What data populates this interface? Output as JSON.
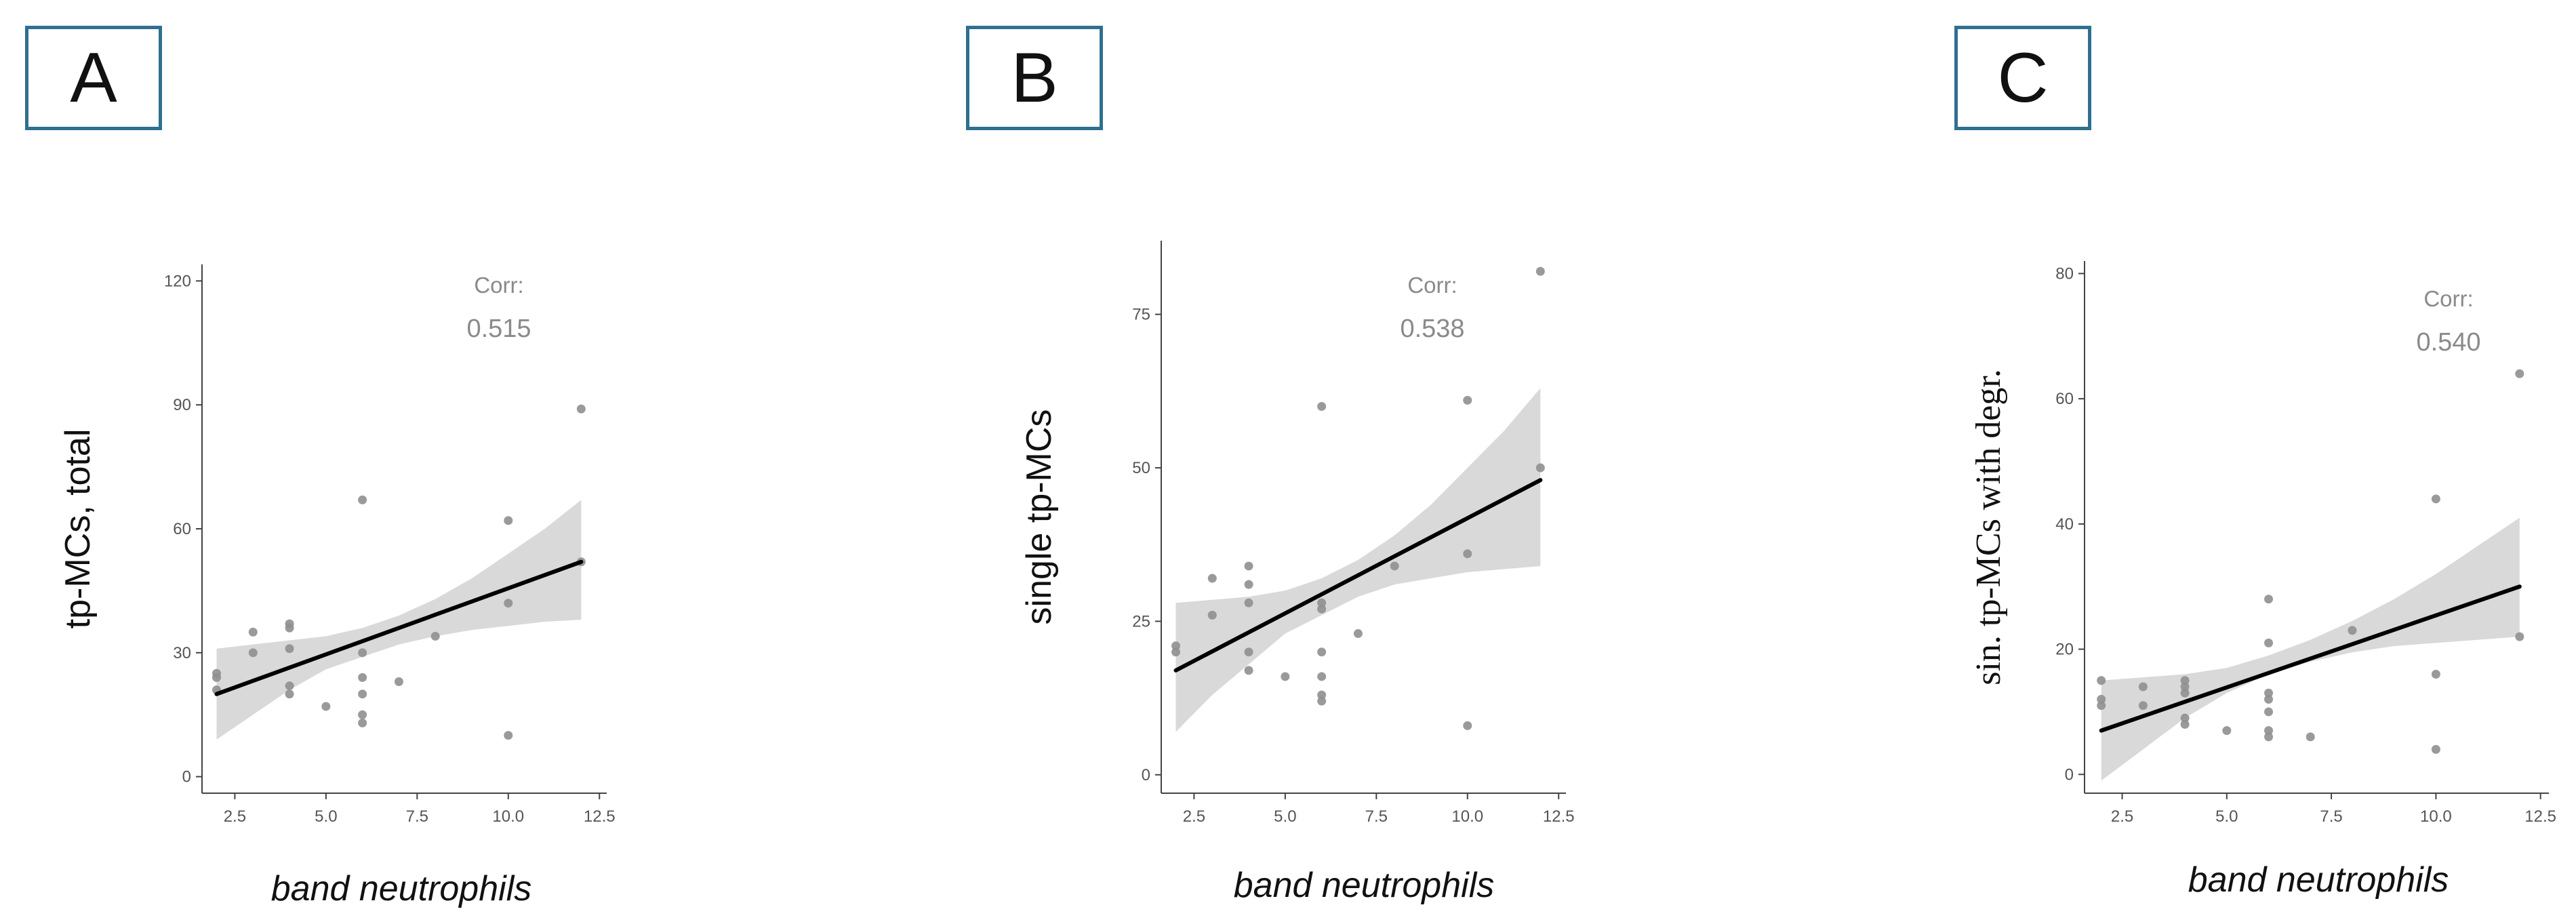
{
  "chart_data": [
    {
      "panel": "A",
      "type": "scatter",
      "ylabel": "tp-MCs, total",
      "xlabel": "band neutrophils",
      "xlim": [
        1.6,
        12.7
      ],
      "ylim": [
        -4,
        124
      ],
      "xticks": [
        2.5,
        5.0,
        7.5,
        10.0,
        12.5
      ],
      "yticks": [
        0,
        30,
        60,
        90,
        120
      ],
      "corr_label": "Corr:",
      "corr_value": "0.515",
      "points": [
        {
          "x": 2,
          "y": 24
        },
        {
          "x": 2,
          "y": 25
        },
        {
          "x": 2,
          "y": 21
        },
        {
          "x": 3,
          "y": 35
        },
        {
          "x": 3,
          "y": 30
        },
        {
          "x": 4,
          "y": 37
        },
        {
          "x": 4,
          "y": 36
        },
        {
          "x": 4,
          "y": 31
        },
        {
          "x": 4,
          "y": 22
        },
        {
          "x": 4,
          "y": 20
        },
        {
          "x": 5,
          "y": 17
        },
        {
          "x": 6,
          "y": 67
        },
        {
          "x": 6,
          "y": 30
        },
        {
          "x": 6,
          "y": 24
        },
        {
          "x": 6,
          "y": 20
        },
        {
          "x": 6,
          "y": 15
        },
        {
          "x": 6,
          "y": 13
        },
        {
          "x": 7,
          "y": 23
        },
        {
          "x": 8,
          "y": 34
        },
        {
          "x": 10,
          "y": 62
        },
        {
          "x": 10,
          "y": 42
        },
        {
          "x": 10,
          "y": 10
        },
        {
          "x": 12,
          "y": 89
        },
        {
          "x": 12,
          "y": 52
        }
      ],
      "fit": {
        "x": [
          2,
          12
        ],
        "y": [
          20,
          52
        ]
      },
      "band": {
        "x": [
          2,
          3,
          4,
          5,
          6,
          7,
          8,
          9,
          10,
          11,
          12
        ],
        "lo": [
          9,
          15,
          21,
          26,
          29,
          32,
          34,
          35.5,
          36.5,
          37.5,
          38
        ],
        "hi": [
          31,
          32,
          33,
          34,
          36,
          39,
          43,
          48,
          54,
          60,
          67
        ]
      },
      "colors": {
        "point": "#8f8f8f",
        "band": "#d9d9d9",
        "line": "#000000"
      }
    },
    {
      "panel": "B",
      "type": "scatter",
      "ylabel": "single tp-MCs",
      "xlabel": "band neutrophils",
      "xlim": [
        1.6,
        12.7
      ],
      "ylim": [
        -3,
        87
      ],
      "xticks": [
        2.5,
        5.0,
        7.5,
        10.0,
        12.5
      ],
      "yticks": [
        0,
        25,
        50,
        75
      ],
      "corr_label": "Corr:",
      "corr_value": "0.538",
      "points": [
        {
          "x": 2,
          "y": 21
        },
        {
          "x": 2,
          "y": 20
        },
        {
          "x": 3,
          "y": 32
        },
        {
          "x": 3,
          "y": 26
        },
        {
          "x": 4,
          "y": 34
        },
        {
          "x": 4,
          "y": 31
        },
        {
          "x": 4,
          "y": 28
        },
        {
          "x": 4,
          "y": 20
        },
        {
          "x": 4,
          "y": 17
        },
        {
          "x": 5,
          "y": 16
        },
        {
          "x": 6,
          "y": 60
        },
        {
          "x": 6,
          "y": 28
        },
        {
          "x": 6,
          "y": 27
        },
        {
          "x": 6,
          "y": 20
        },
        {
          "x": 6,
          "y": 16
        },
        {
          "x": 6,
          "y": 13
        },
        {
          "x": 6,
          "y": 12
        },
        {
          "x": 7,
          "y": 23
        },
        {
          "x": 8,
          "y": 34
        },
        {
          "x": 10,
          "y": 61
        },
        {
          "x": 10,
          "y": 36
        },
        {
          "x": 10,
          "y": 8
        },
        {
          "x": 12,
          "y": 82
        },
        {
          "x": 12,
          "y": 50
        }
      ],
      "fit": {
        "x": [
          2,
          12
        ],
        "y": [
          17,
          48
        ]
      },
      "band": {
        "x": [
          2,
          3,
          4,
          5,
          6,
          7,
          8,
          9,
          10,
          11,
          12
        ],
        "lo": [
          7,
          13,
          18,
          23,
          26,
          29,
          31,
          32,
          33,
          33.5,
          34
        ],
        "hi": [
          28,
          28.5,
          29,
          30,
          32,
          35,
          39,
          44,
          50,
          56,
          63
        ]
      },
      "colors": {
        "point": "#8f8f8f",
        "band": "#d9d9d9",
        "line": "#000000"
      }
    },
    {
      "panel": "C",
      "type": "scatter",
      "ylabel": "sin. tp-MCs with degr.",
      "xlabel": "band neutrophils",
      "xlim": [
        1.6,
        12.7
      ],
      "ylim": [
        -3,
        82
      ],
      "xticks": [
        2.5,
        5.0,
        7.5,
        10.0,
        12.5
      ],
      "yticks": [
        0,
        20,
        40,
        60,
        80
      ],
      "corr_label": "Corr:",
      "corr_value": "0.540",
      "points": [
        {
          "x": 2,
          "y": 15
        },
        {
          "x": 2,
          "y": 12
        },
        {
          "x": 2,
          "y": 11
        },
        {
          "x": 3,
          "y": 14
        },
        {
          "x": 3,
          "y": 11
        },
        {
          "x": 4,
          "y": 15
        },
        {
          "x": 4,
          "y": 14
        },
        {
          "x": 4,
          "y": 13
        },
        {
          "x": 4,
          "y": 9
        },
        {
          "x": 4,
          "y": 8
        },
        {
          "x": 5,
          "y": 7
        },
        {
          "x": 6,
          "y": 28
        },
        {
          "x": 6,
          "y": 21
        },
        {
          "x": 6,
          "y": 13
        },
        {
          "x": 6,
          "y": 12
        },
        {
          "x": 6,
          "y": 10
        },
        {
          "x": 6,
          "y": 7
        },
        {
          "x": 6,
          "y": 6
        },
        {
          "x": 7,
          "y": 6
        },
        {
          "x": 8,
          "y": 23
        },
        {
          "x": 10,
          "y": 44
        },
        {
          "x": 10,
          "y": 16
        },
        {
          "x": 10,
          "y": 4
        },
        {
          "x": 12,
          "y": 64
        },
        {
          "x": 12,
          "y": 22
        }
      ],
      "fit": {
        "x": [
          2,
          12
        ],
        "y": [
          7,
          30
        ]
      },
      "band": {
        "x": [
          2,
          3,
          4,
          5,
          6,
          7,
          8,
          9,
          10,
          11,
          12
        ],
        "lo": [
          -1,
          4,
          9,
          13,
          16,
          18,
          19.5,
          20.5,
          21,
          21.5,
          22
        ],
        "hi": [
          15,
          15.5,
          16,
          17,
          19,
          21.5,
          24.5,
          28,
          32,
          36.5,
          41
        ]
      },
      "colors": {
        "point": "#8f8f8f",
        "band": "#d9d9d9",
        "line": "#000000"
      }
    }
  ]
}
